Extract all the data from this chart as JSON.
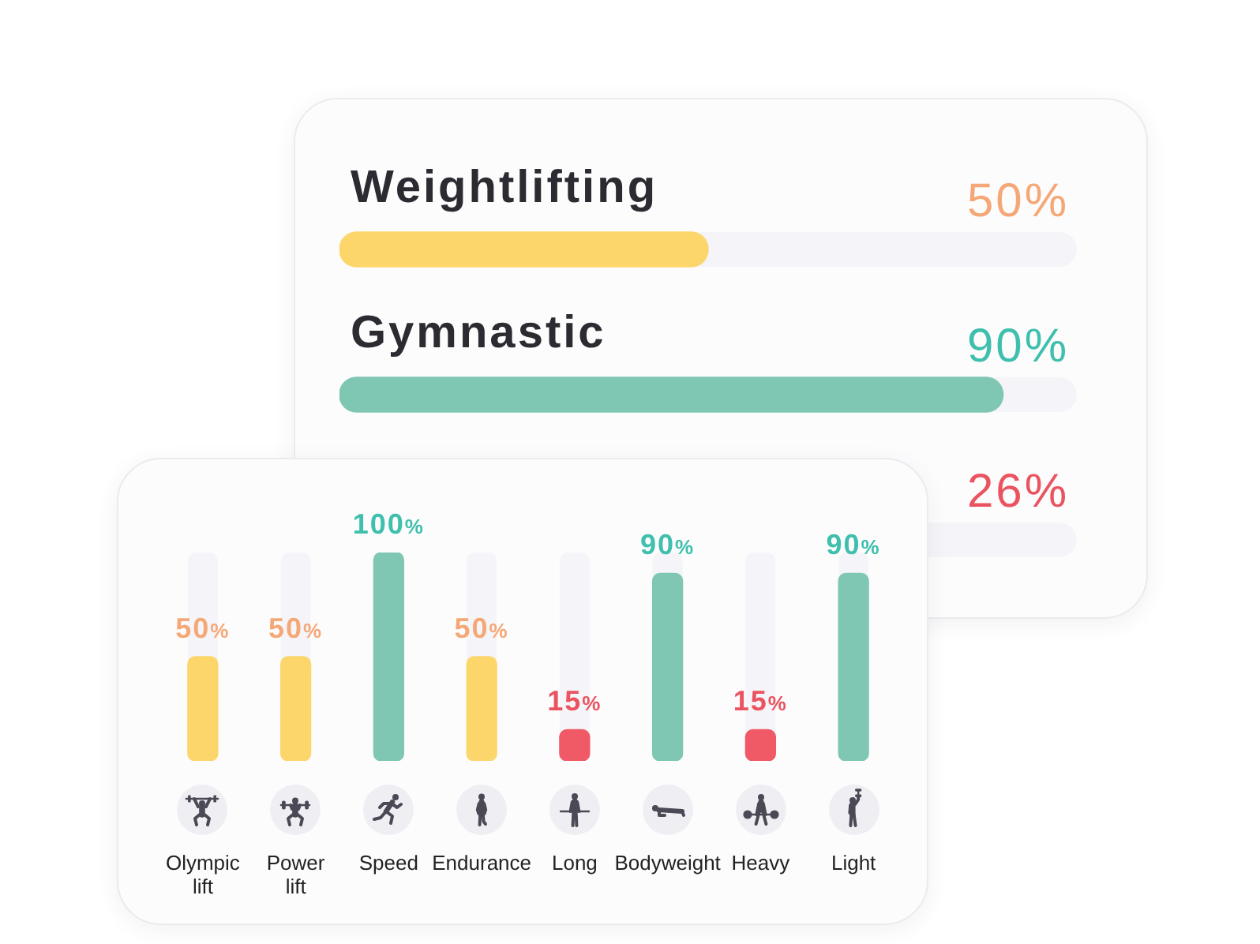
{
  "chart_data": [
    {
      "type": "bar",
      "orientation": "horizontal",
      "categories": [
        "Weightlifting",
        "Gymnastic",
        null
      ],
      "values": [
        50,
        90,
        null
      ],
      "colors": [
        "#fdd66b",
        "#7fc7b3",
        "#ef5a66"
      ],
      "value_labels": [
        "50%",
        "90%",
        "26%"
      ],
      "xlim": [
        0,
        100
      ],
      "tick_labels": "y"
    },
    {
      "type": "bar",
      "categories": [
        "Olympic lift",
        "Power lift",
        "Speed",
        "Endurance",
        "Long",
        "Bodyweight",
        "Heavy",
        "Light"
      ],
      "values": [
        50,
        50,
        100,
        50,
        15,
        90,
        15,
        90
      ],
      "colors": [
        "#fdd66b",
        "#fdd66b",
        "#7fc7b3",
        "#fdd66b",
        "#ef5a66",
        "#7fc7b3",
        "#ef5a66",
        "#7fc7b3"
      ],
      "value_labels": [
        "50%",
        "50%",
        "100%",
        "50%",
        "15%",
        "90%",
        "15%",
        "90%"
      ],
      "ylim": [
        0,
        100
      ],
      "tick_labels": "x"
    }
  ]
}
